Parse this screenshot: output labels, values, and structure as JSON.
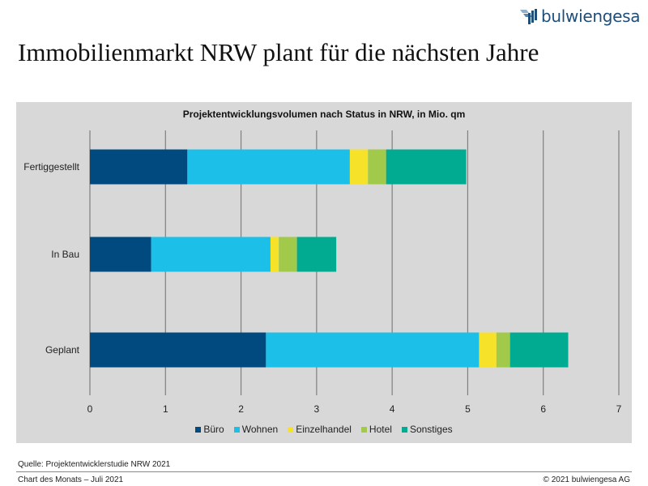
{
  "header": {
    "brand": "bulwiengesa",
    "title": "Immobilienmarkt NRW plant für die nächsten Jahre"
  },
  "footer": {
    "source": "Quelle: Projektentwicklerstudie NRW 2021",
    "series_label": "Chart des Monats – Juli 2021",
    "copyright": "© 2021 bulwiengesa AG"
  },
  "colors": {
    "brand": "#1f4e79",
    "panel": "#d9d8d8"
  },
  "chart_data": {
    "type": "bar",
    "orientation": "horizontal",
    "stacked": true,
    "title": "Projektentwicklungsvolumen nach Status in NRW, in Mio. qm",
    "xlabel": "",
    "ylabel": "",
    "xlim": [
      0,
      7
    ],
    "xticks": [
      "0",
      "1",
      "2",
      "3",
      "4",
      "5",
      "6",
      "7"
    ],
    "grid": true,
    "legend_position": "bottom",
    "categories": [
      "Fertiggestellt",
      "In Bau",
      "Geplant"
    ],
    "series": [
      {
        "name": "Büro",
        "color": "#004a7f",
        "values": [
          1.29,
          0.81,
          2.33
        ]
      },
      {
        "name": "Wohnen",
        "color": "#1bbfe8",
        "values": [
          2.15,
          1.58,
          2.82
        ]
      },
      {
        "name": "Einzelhandel",
        "color": "#f7e22a",
        "values": [
          0.24,
          0.11,
          0.23
        ]
      },
      {
        "name": "Hotel",
        "color": "#a1c94a",
        "values": [
          0.24,
          0.24,
          0.18
        ]
      },
      {
        "name": "Sonstiges",
        "color": "#00ab92",
        "values": [
          1.06,
          0.52,
          0.77
        ]
      }
    ]
  }
}
